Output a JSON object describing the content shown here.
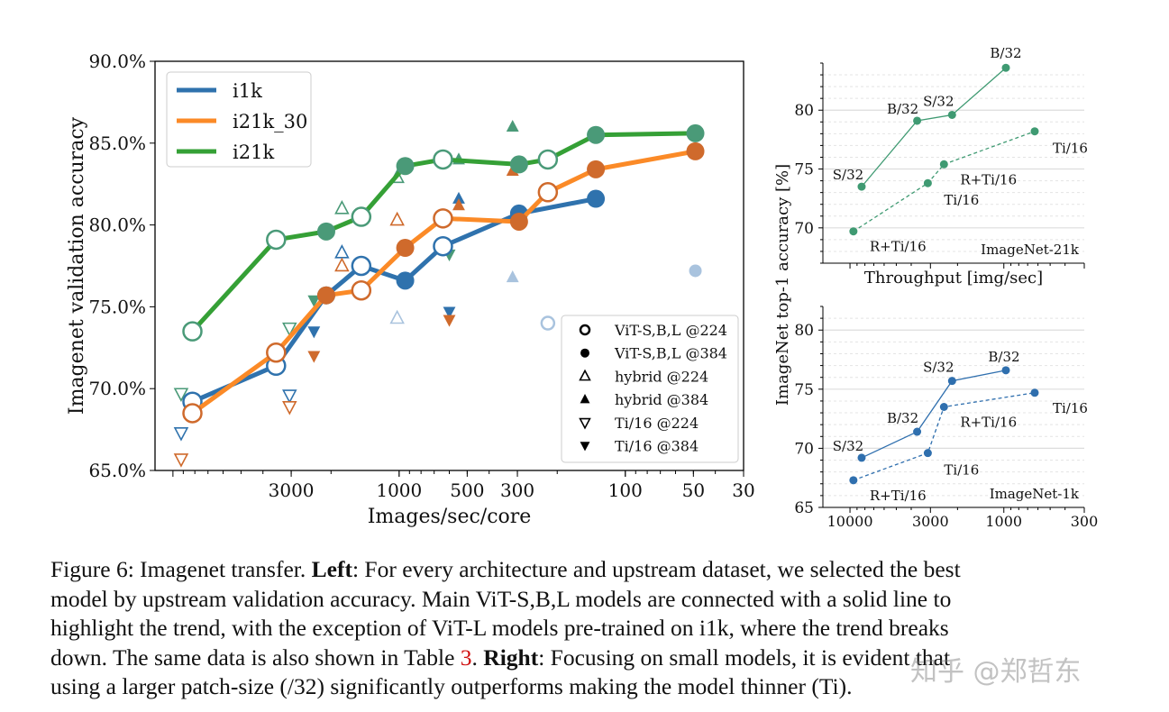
{
  "chart_data": [
    {
      "type": "line",
      "ylabel": "Imagenet validation accuracy",
      "xlabel": "Images/sec/core",
      "x_scale": "log",
      "x_reversed": true,
      "xlim": [
        12000,
        30
      ],
      "ylim": [
        65,
        90
      ],
      "xticks": [
        "3000",
        "1000",
        "500",
        "300",
        "100",
        "50",
        "30"
      ],
      "xtick_values": [
        3000,
        1000,
        500,
        300,
        100,
        50,
        30
      ],
      "yticks": [
        "65.0%",
        "70.0%",
        "75.0%",
        "80.0%",
        "85.0%",
        "90.0%"
      ],
      "ytick_values": [
        65,
        70,
        75,
        80,
        85,
        90
      ],
      "grid": false,
      "legend_series_placement": "top-left",
      "legend_markers_placement": "bottom-right",
      "series": [
        {
          "name": "i1k",
          "color": "#2f72ad",
          "marker_color": "#2f72ad",
          "x": [
            8200,
            3500,
            2100,
            1470,
            940,
            640,
            295,
            135
          ],
          "y": [
            69.2,
            71.4,
            75.7,
            77.5,
            76.6,
            78.7,
            80.7,
            81.6
          ],
          "res": [
            224,
            224,
            384,
            224,
            384,
            224,
            384,
            384
          ]
        },
        {
          "name": "i21k_30",
          "color": "#fb8a27",
          "marker_color": "#cf6a2c",
          "x": [
            8200,
            3500,
            2100,
            1470,
            940,
            640,
            295,
            220,
            135,
            49
          ],
          "y": [
            68.5,
            72.2,
            75.7,
            76.0,
            78.6,
            80.4,
            80.2,
            82.0,
            83.4,
            84.5
          ],
          "res": [
            224,
            224,
            384,
            224,
            384,
            224,
            384,
            224,
            384,
            384
          ]
        },
        {
          "name": "i21k",
          "color": "#35a036",
          "marker_color": "#4a9a78",
          "x": [
            8200,
            3500,
            2100,
            1470,
            940,
            640,
            295,
            220,
            135,
            49
          ],
          "y": [
            73.5,
            79.1,
            79.6,
            80.5,
            83.6,
            84.0,
            83.7,
            84.0,
            85.5,
            85.6
          ],
          "res": [
            224,
            224,
            384,
            224,
            384,
            224,
            384,
            224,
            384,
            384
          ]
        }
      ],
      "extra_points": [
        {
          "group": "i1k ViT-L (faded)",
          "marker": "circle",
          "filled": false,
          "x": 220,
          "y": 74.0,
          "color": "#a9c3de"
        },
        {
          "group": "i1k ViT-L (faded)",
          "marker": "circle",
          "filled": true,
          "x": 49,
          "y": 77.2,
          "color": "#a9c3de"
        },
        {
          "group": "i21k",
          "marker": "triangle-up",
          "filled": false,
          "x": 1790,
          "y": 81.0,
          "color": "#4a9a78"
        },
        {
          "group": "i21k",
          "marker": "triangle-up",
          "filled": false,
          "x": 1020,
          "y": 82.9,
          "color": "#4a9a78"
        },
        {
          "group": "i21k",
          "marker": "triangle-up",
          "filled": true,
          "x": 545,
          "y": 84.0,
          "color": "#4a9a78"
        },
        {
          "group": "i21k",
          "marker": "triangle-up",
          "filled": true,
          "x": 315,
          "y": 86.0,
          "color": "#4a9a78"
        },
        {
          "group": "i1k",
          "marker": "triangle-up",
          "filled": false,
          "x": 1790,
          "y": 78.3,
          "color": "#2f72ad"
        },
        {
          "group": "i1k",
          "marker": "triangle-up",
          "filled": false,
          "x": 1020,
          "y": 74.3,
          "color": "#a9c3de"
        },
        {
          "group": "i1k",
          "marker": "triangle-up",
          "filled": true,
          "x": 545,
          "y": 81.6,
          "color": "#2f72ad"
        },
        {
          "group": "i1k",
          "marker": "triangle-up",
          "filled": true,
          "x": 315,
          "y": 76.8,
          "color": "#a9c3de"
        },
        {
          "group": "i21k_30",
          "marker": "triangle-up",
          "filled": false,
          "x": 1790,
          "y": 77.5,
          "color": "#cf6a2c"
        },
        {
          "group": "i21k_30",
          "marker": "triangle-up",
          "filled": false,
          "x": 1020,
          "y": 80.3,
          "color": "#cf6a2c"
        },
        {
          "group": "i21k_30",
          "marker": "triangle-up",
          "filled": true,
          "x": 545,
          "y": 81.2,
          "color": "#cf6a2c"
        },
        {
          "group": "i21k_30",
          "marker": "triangle-up",
          "filled": true,
          "x": 315,
          "y": 83.3,
          "color": "#cf6a2c"
        },
        {
          "group": "i21k",
          "marker": "triangle-down",
          "filled": false,
          "x": 9200,
          "y": 69.7,
          "color": "#4a9a78"
        },
        {
          "group": "i1k",
          "marker": "triangle-down",
          "filled": false,
          "x": 9200,
          "y": 67.3,
          "color": "#2f72ad"
        },
        {
          "group": "i21k_30",
          "marker": "triangle-down",
          "filled": false,
          "x": 9200,
          "y": 65.7,
          "color": "#cf6a2c"
        },
        {
          "group": "i21k",
          "marker": "triangle-down",
          "filled": false,
          "x": 3050,
          "y": 73.7,
          "color": "#4a9a78"
        },
        {
          "group": "i1k",
          "marker": "triangle-down",
          "filled": false,
          "x": 3050,
          "y": 69.6,
          "color": "#2f72ad"
        },
        {
          "group": "i21k_30",
          "marker": "triangle-down",
          "filled": false,
          "x": 3050,
          "y": 68.9,
          "color": "#cf6a2c"
        },
        {
          "group": "i21k",
          "marker": "triangle-down",
          "filled": true,
          "x": 2380,
          "y": 75.4,
          "color": "#4a9a78"
        },
        {
          "group": "i1k",
          "marker": "triangle-down",
          "filled": true,
          "x": 2380,
          "y": 73.5,
          "color": "#2f72ad"
        },
        {
          "group": "i21k_30",
          "marker": "triangle-down",
          "filled": true,
          "x": 2380,
          "y": 72.0,
          "color": "#cf6a2c"
        },
        {
          "group": "i21k",
          "marker": "triangle-down",
          "filled": true,
          "x": 600,
          "y": 78.2,
          "color": "#4a9a78"
        },
        {
          "group": "i1k",
          "marker": "triangle-down",
          "filled": true,
          "x": 600,
          "y": 74.7,
          "color": "#2f72ad"
        },
        {
          "group": "i21k_30",
          "marker": "triangle-down",
          "filled": true,
          "x": 600,
          "y": 74.2,
          "color": "#cf6a2c"
        }
      ],
      "marker_legend": [
        {
          "label": "ViT-S,B,L @224",
          "marker": "circle",
          "filled": false
        },
        {
          "label": "ViT-S,B,L @384",
          "marker": "circle",
          "filled": true
        },
        {
          "label": "hybrid @224",
          "marker": "triangle-up",
          "filled": false
        },
        {
          "label": "hybrid @384",
          "marker": "triangle-up",
          "filled": true
        },
        {
          "label": "Ti/16 @224",
          "marker": "triangle-down",
          "filled": false
        },
        {
          "label": "Ti/16 @384",
          "marker": "triangle-down",
          "filled": true
        }
      ]
    },
    {
      "type": "line",
      "panel_label": "ImageNet-21k",
      "xlabel": "Throughput [img/sec]",
      "ylabel": "ImageNet top-1 accuracy [%]",
      "x_scale": "log",
      "x_reversed": true,
      "xlim": [
        15000,
        300
      ],
      "ylim": [
        67,
        84
      ],
      "yticks": [
        "70",
        "75",
        "80"
      ],
      "ytick_values": [
        70,
        75,
        80
      ],
      "grid": true,
      "color": "#3f9a72",
      "series": [
        {
          "style": "solid",
          "x": [
            8400,
            3660,
            2170,
            970
          ],
          "y": [
            73.5,
            79.1,
            79.6,
            83.6
          ],
          "labels": [
            "S/32",
            "B/32",
            "S/32",
            "B/32"
          ]
        },
        {
          "style": "dashed",
          "x": [
            9500,
            3120,
            2450,
            630
          ],
          "y": [
            69.7,
            73.8,
            75.4,
            78.2
          ],
          "labels": [
            "R+Ti/16",
            "Ti/16",
            "R+Ti/16",
            "Ti/16"
          ]
        }
      ]
    },
    {
      "type": "line",
      "panel_label": "ImageNet-1k",
      "x_scale": "log",
      "x_reversed": true,
      "xlim": [
        15000,
        300
      ],
      "ylim": [
        65,
        82
      ],
      "xticks": [
        "10000",
        "3000",
        "1000",
        "300"
      ],
      "xtick_values": [
        10000,
        3000,
        1000,
        300
      ],
      "yticks": [
        "65",
        "70",
        "75",
        "80"
      ],
      "ytick_values": [
        65,
        70,
        75,
        80
      ],
      "grid": true,
      "color": "#2f6fae",
      "series": [
        {
          "style": "solid",
          "x": [
            8400,
            3660,
            2170,
            970
          ],
          "y": [
            69.2,
            71.4,
            75.7,
            76.6
          ],
          "labels": [
            "S/32",
            "B/32",
            "S/32",
            "B/32"
          ]
        },
        {
          "style": "dashed",
          "x": [
            9500,
            3120,
            2450,
            630
          ],
          "y": [
            67.3,
            69.6,
            73.5,
            74.7
          ],
          "labels": [
            "R+Ti/16",
            "Ti/16",
            "R+Ti/16",
            "Ti/16"
          ]
        }
      ]
    }
  ],
  "caption": [
    [
      {
        "t": "Figure 6: Imagenet transfer. "
      },
      {
        "t": "Left",
        "s": "bold"
      },
      {
        "t": ": For every architecture and upstream dataset, we selected the best"
      }
    ],
    [
      {
        "t": "model by upstream validation accuracy. Main ViT-S,B,L models are connected with a solid line to"
      }
    ],
    [
      {
        "t": "highlight the trend, with the exception of ViT-L models pre-trained on i1k, where the trend breaks"
      }
    ],
    [
      {
        "t": "down. The same data is also shown in Table "
      },
      {
        "t": "3",
        "s": "ref"
      },
      {
        "t": ". "
      },
      {
        "t": "Right",
        "s": "bold"
      },
      {
        "t": ": Focusing on small models, it is evident that"
      }
    ],
    [
      {
        "t": "using a larger patch-size (/32) significantly outperforms making the model thinner (Ti)."
      }
    ]
  ],
  "watermark": "知乎 @郑哲东"
}
